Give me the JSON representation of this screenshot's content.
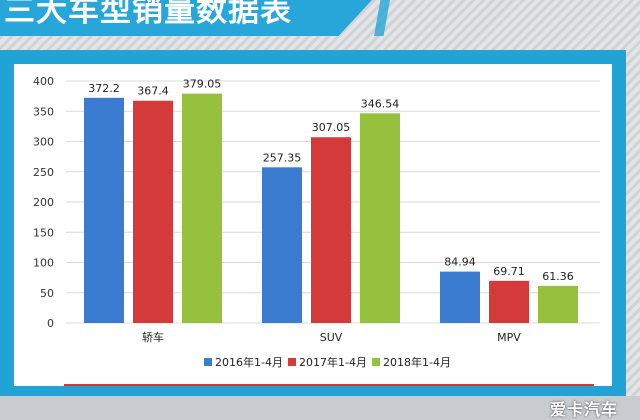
{
  "page": {
    "title": "三大车型销量数据表",
    "watermark": "爱卡汽车"
  },
  "colors": {
    "series1": "#3b7cd0",
    "series2": "#d43a3a",
    "series3": "#95c13c",
    "frame": "#22a3d5",
    "grid": "#d9d9d9"
  },
  "chart_data": {
    "type": "bar",
    "title": "三大车型销量数据表",
    "categories": [
      "轿车",
      "SUV",
      "MPV"
    ],
    "series": [
      {
        "name": "2016年1-4月",
        "values": [
          372.2,
          257.35,
          84.94
        ],
        "labels": [
          "372.2",
          "257.35",
          "84.94"
        ]
      },
      {
        "name": "2017年1-4月",
        "values": [
          367.4,
          307.05,
          69.71
        ],
        "labels": [
          "367.4",
          "307.05",
          "69.71"
        ]
      },
      {
        "name": "2018年1-4月",
        "values": [
          379.05,
          346.54,
          61.36
        ],
        "labels": [
          "379.05",
          "346.54",
          "61.36"
        ]
      }
    ],
    "ylim": [
      0,
      400
    ],
    "yticks": [
      0,
      50,
      100,
      150,
      200,
      250,
      300,
      350,
      400
    ],
    "xlabel": "",
    "ylabel": "",
    "grid": true,
    "legend": "bottom"
  }
}
